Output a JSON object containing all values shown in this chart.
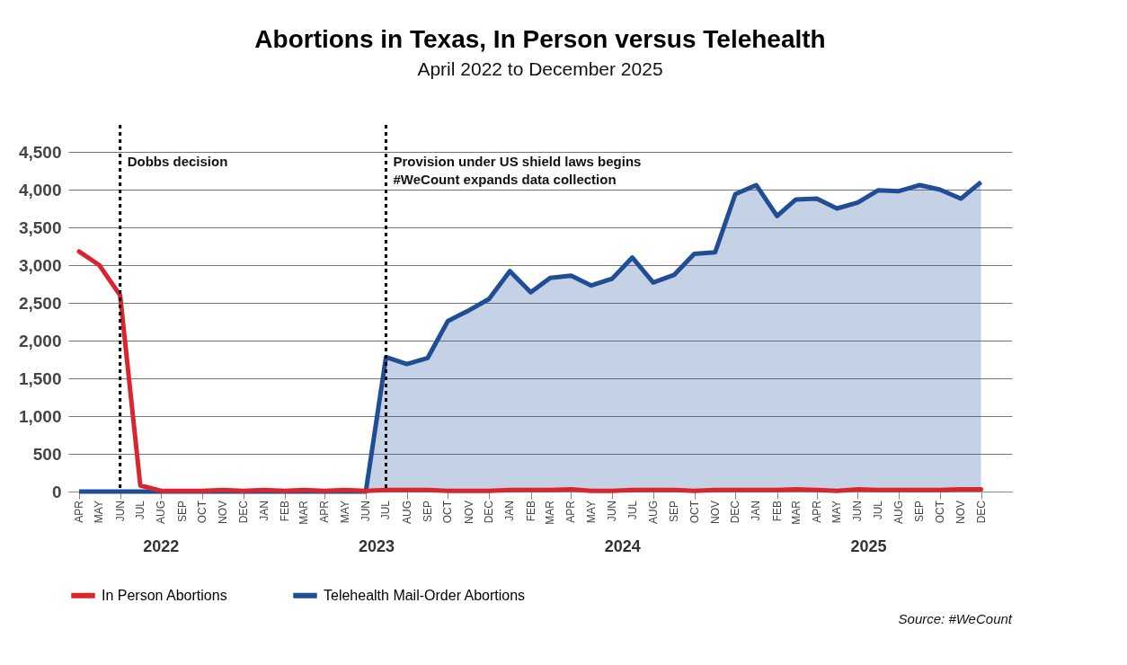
{
  "chart_data": {
    "type": "line",
    "title": "Abortions in Texas, In Person versus Telehealth",
    "subtitle": "April 2022 to December 2025",
    "x": [
      "2022-04",
      "2022-05",
      "2022-06",
      "2022-07",
      "2022-08",
      "2022-09",
      "2022-10",
      "2022-11",
      "2022-12",
      "2023-01",
      "2023-02",
      "2023-03",
      "2023-04",
      "2023-05",
      "2023-06",
      "2023-07",
      "2023-08",
      "2023-09",
      "2023-10",
      "2023-11",
      "2023-12",
      "2024-01",
      "2024-02",
      "2024-03",
      "2024-04",
      "2024-05",
      "2024-06",
      "2024-07",
      "2024-08",
      "2024-09",
      "2024-10",
      "2024-11",
      "2024-12",
      "2025-01",
      "2025-02",
      "2025-03",
      "2025-04",
      "2025-05",
      "2025-06",
      "2025-07",
      "2025-08",
      "2025-09",
      "2025-10",
      "2025-11",
      "2025-12"
    ],
    "series": [
      {
        "name": "In Person Abortions",
        "type": "line",
        "color": "#d9262e",
        "values": [
          3180,
          3000,
          2600,
          80,
          10,
          10,
          10,
          20,
          10,
          20,
          10,
          20,
          10,
          20,
          10,
          20,
          20,
          20,
          10,
          10,
          10,
          20,
          20,
          20,
          30,
          10,
          10,
          20,
          20,
          20,
          10,
          20,
          20,
          20,
          20,
          30,
          20,
          10,
          30,
          20,
          20,
          20,
          20,
          30,
          30
        ]
      },
      {
        "name": "Telehealth Mail-Order Abortions",
        "type": "area",
        "color": "#1f4e96",
        "values": [
          0,
          0,
          0,
          0,
          0,
          0,
          0,
          0,
          0,
          0,
          0,
          0,
          0,
          0,
          0,
          1780,
          1690,
          1770,
          2260,
          2400,
          2550,
          2920,
          2640,
          2830,
          2860,
          2730,
          2820,
          3100,
          2770,
          2870,
          3150,
          3170,
          3940,
          4060,
          3650,
          3870,
          3880,
          3750,
          3830,
          3990,
          3980,
          4060,
          4000,
          3880,
          4100
        ]
      }
    ],
    "ylim": [
      0,
      4500
    ],
    "yticks": [
      0,
      500,
      {
        "value": 1000,
        "label": "1,000"
      },
      {
        "value": 1500,
        "label": "1,500"
      },
      {
        "value": 2000,
        "label": "2,000"
      },
      {
        "value": 2500,
        "label": "2,500"
      },
      {
        "value": 3000,
        "label": "3,000"
      },
      {
        "value": 3500,
        "label": "3,500"
      },
      {
        "value": 4000,
        "label": "4,000"
      },
      {
        "value": 4500,
        "label": "4,500"
      }
    ],
    "xticks": [
      {
        "value": "2022-04",
        "label": "APR"
      },
      {
        "value": "2022-05",
        "label": "MAY"
      },
      {
        "value": "2022-06",
        "label": "JUN"
      },
      {
        "value": "2022-07",
        "label": "JUL"
      },
      {
        "value": "2022-08",
        "label": "AUG"
      },
      {
        "value": "2022-09",
        "label": "SEP"
      },
      {
        "value": "2022-10",
        "label": "OCT"
      },
      {
        "value": "2022-11",
        "label": "NOV"
      },
      {
        "value": "2022-12",
        "label": "DEC"
      },
      {
        "value": "2023-01",
        "label": "JAN"
      },
      {
        "value": "2023-02",
        "label": "FEB"
      },
      {
        "value": "2023-03",
        "label": "MAR"
      },
      {
        "value": "2023-04",
        "label": "APR"
      },
      {
        "value": "2023-05",
        "label": "MAY"
      },
      {
        "value": "2023-06",
        "label": "JUN"
      },
      {
        "value": "2023-07",
        "label": "JUL"
      },
      {
        "value": "2023-08",
        "label": "AUG"
      },
      {
        "value": "2023-09",
        "label": "SEP"
      },
      {
        "value": "2023-10",
        "label": "OCT"
      },
      {
        "value": "2023-11",
        "label": "NOV"
      },
      {
        "value": "2023-12",
        "label": "DEC"
      },
      {
        "value": "2024-01",
        "label": "JAN"
      },
      {
        "value": "2024-02",
        "label": "FEB"
      },
      {
        "value": "2024-03",
        "label": "MAR"
      },
      {
        "value": "2024-04",
        "label": "APR"
      },
      {
        "value": "2024-05",
        "label": "MAY"
      },
      {
        "value": "2024-06",
        "label": "JUN"
      },
      {
        "value": "2024-07",
        "label": "JUL"
      },
      {
        "value": "2024-08",
        "label": "AUG"
      },
      {
        "value": "2024-09",
        "label": "SEP"
      },
      {
        "value": "2024-10",
        "label": "OCT"
      },
      {
        "value": "2024-11",
        "label": "NOV"
      },
      {
        "value": "2024-12",
        "label": "DEC"
      },
      {
        "value": "2025-01",
        "label": "JAN"
      },
      {
        "value": "2025-02",
        "label": "FEB"
      },
      {
        "value": "2025-03",
        "label": "MAR"
      },
      {
        "value": "2025-04",
        "label": "APR"
      },
      {
        "value": "2025-05",
        "label": "MAY"
      },
      {
        "value": "2025-06",
        "label": "JUN"
      },
      {
        "value": "2025-07",
        "label": "JUL"
      },
      {
        "value": "2025-08",
        "label": "AUG"
      },
      {
        "value": "2025-09",
        "label": "SEP"
      },
      {
        "value": "2025-10",
        "label": "OCT"
      },
      {
        "value": "2025-11",
        "label": "NOV"
      },
      {
        "value": "2025-12",
        "label": "DEC"
      }
    ],
    "grid": "y",
    "legend": "bottom",
    "line_style": "solid",
    "ref_lines": [
      {
        "axis": "x",
        "value": "2022-06",
        "label": "Dobbs decision",
        "line_style": "dotted"
      },
      {
        "axis": "x",
        "value": "2023-07",
        "label": "Provision under US shield laws begins\n#WeCount expands data collection",
        "line_style": "dotted"
      }
    ],
    "xlim": [
      "2022-03-16",
      "2026-01-16"
    ],
    "annotations": [
      "2022",
      "2023",
      "2024",
      "2025",
      "Source: #WeCount"
    ]
  }
}
